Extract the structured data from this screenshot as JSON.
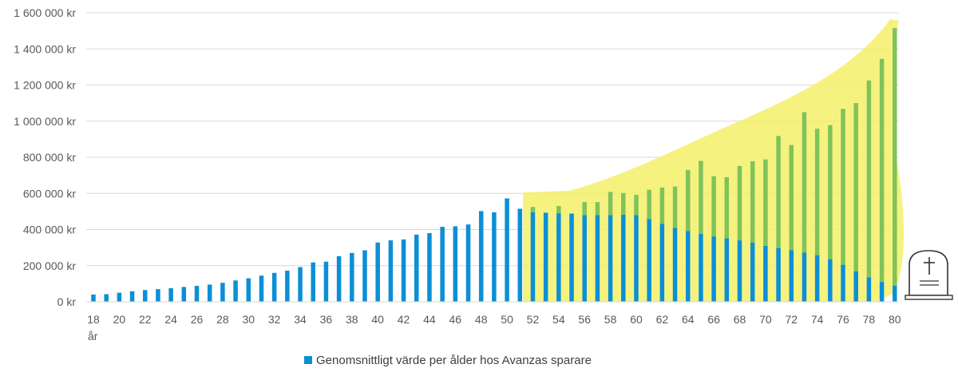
{
  "colors": {
    "bar": "#0b8fd6",
    "overlay_bar": "#7fc35a",
    "highlight": "#f5f06a",
    "grid": "#d9d9d9",
    "text": "#595959"
  },
  "legend": {
    "label": "Genomsnittligt värde per ålder hos Avanzas sparare"
  },
  "x_unit_label": "år",
  "gravestone_icon": "gravestone-icon",
  "chart_data": {
    "type": "bar",
    "title": "",
    "xlabel": "",
    "ylabel": "",
    "ylim": [
      0,
      1600000
    ],
    "yticks": [
      {
        "value": 0,
        "label": "0 kr"
      },
      {
        "value": 200000,
        "label": "200 000 kr"
      },
      {
        "value": 400000,
        "label": "400 000 kr"
      },
      {
        "value": 600000,
        "label": "600 000 kr"
      },
      {
        "value": 800000,
        "label": "800 000 kr"
      },
      {
        "value": 1000000,
        "label": "1 000 000 kr"
      },
      {
        "value": 1200000,
        "label": "1 200 000 kr"
      },
      {
        "value": 1400000,
        "label": "1 400 000 kr"
      },
      {
        "value": 1600000,
        "label": "1 600 000 kr"
      }
    ],
    "categories": [
      18,
      19,
      20,
      21,
      22,
      23,
      24,
      25,
      26,
      27,
      28,
      29,
      30,
      31,
      32,
      33,
      34,
      35,
      36,
      37,
      38,
      39,
      40,
      41,
      42,
      43,
      44,
      45,
      46,
      47,
      48,
      49,
      50,
      51,
      52,
      53,
      54,
      55,
      56,
      57,
      58,
      59,
      60,
      61,
      62,
      63,
      64,
      65,
      66,
      67,
      68,
      69,
      70,
      71,
      72,
      73,
      74,
      75,
      76,
      77,
      78,
      79,
      80
    ],
    "xtick_labels": [
      "18",
      "20",
      "22",
      "24",
      "26",
      "28",
      "30",
      "32",
      "34",
      "36",
      "38",
      "40",
      "42",
      "44",
      "46",
      "48",
      "50",
      "52",
      "54",
      "56",
      "58",
      "60",
      "62",
      "64",
      "66",
      "68",
      "70",
      "72",
      "74",
      "76",
      "78",
      "80"
    ],
    "series": [
      {
        "name": "Genomsnittligt värde per ålder hos Avanzas sparare",
        "values": [
          40000,
          42000,
          50000,
          58000,
          65000,
          70000,
          75000,
          82000,
          88000,
          95000,
          105000,
          118000,
          130000,
          145000,
          160000,
          172000,
          192000,
          218000,
          222000,
          252000,
          270000,
          285000,
          328000,
          340000,
          345000,
          372000,
          380000,
          415000,
          418000,
          428000,
          502000,
          495000,
          572000,
          515000,
          495000,
          493000,
          490000,
          488000,
          480000,
          480000,
          480000,
          482000,
          480000,
          458000,
          432000,
          410000,
          392000,
          376000,
          362000,
          352000,
          340000,
          328000,
          310000,
          298000,
          286000,
          272000,
          258000,
          236000,
          205000,
          168000,
          135000,
          110000,
          90000
        ]
      },
      {
        "name": "",
        "values": [
          null,
          null,
          null,
          null,
          null,
          null,
          null,
          null,
          null,
          null,
          null,
          null,
          null,
          null,
          null,
          null,
          null,
          null,
          null,
          null,
          null,
          null,
          null,
          null,
          null,
          null,
          null,
          null,
          null,
          null,
          null,
          null,
          null,
          null,
          525000,
          null,
          530000,
          null,
          552000,
          552000,
          608000,
          602000,
          592000,
          620000,
          632000,
          638000,
          730000,
          780000,
          695000,
          690000,
          752000,
          778000,
          788000,
          918000,
          868000,
          1050000,
          958000,
          978000,
          1068000,
          1100000,
          1225000,
          1345000,
          1515000
        ]
      }
    ]
  }
}
